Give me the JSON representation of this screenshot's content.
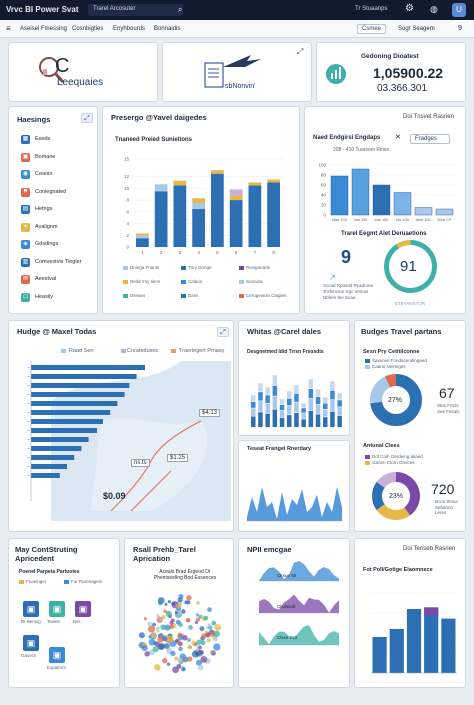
{
  "app": {
    "title": "Vrvc BI Power Svat",
    "tab": "Trarel Arcosuter",
    "user": "Tr Stuaanps"
  },
  "menu": {
    "items": [
      "Aseisel Fmessing",
      "Cosnbigties",
      "Enyhbourds",
      "Bonnaidis"
    ],
    "btn1": "Csmee",
    "btn2": "Sogr  Seagem",
    "help": "9"
  },
  "kpi": {
    "card1_letter": "C",
    "card1_text": "Leequaies",
    "card2_text": "sbNonvin'",
    "card3_title": "Gedoning Dioatest",
    "card3_value": "1,05900.22",
    "card3_sub": "03.366.301"
  },
  "sidebar": {
    "title": "Haesings",
    "items": [
      "Easds",
      "Bomane",
      "Ceaoin",
      "Coniegnated",
      "Hetngs",
      "Avalignm",
      "Gdsdings",
      "Comvestvis Tiegler",
      "Aeestval",
      "Heasily"
    ]
  },
  "mainbar": {
    "title": "Presergo @Yavel daigedes",
    "sub": "Tnaneed Preied Sunietions",
    "legend": [
      "Dniega Fnants",
      "Tnry Dnnge",
      "Reviganarle",
      "Reitd Yriy tiens",
      "Celaon",
      "Sonnina",
      "Dsiears",
      "Daris",
      "Cerogewoin Clagien"
    ]
  },
  "rightbar": {
    "title": "Naed Endgirsi Engdaps",
    "select": "Fradges",
    "top_btn": "Doi Tnsvet Rasrien",
    "range": "208 - 410 Tuarsom Rines",
    "sub2": "Trarel Eegmt Alet Deruaetions",
    "big9": "9",
    "donut_val": "91",
    "s9a": "Sccad Rpasdd Ryadrone",
    "s9b": "Tcsfimcton Sgc Vemas",
    "s9c": "Nbfers the Scaa",
    "foot": "ETBYANSTOR"
  },
  "hbar": {
    "title": "Hudge @ Maxel Todas",
    "legend": [
      "Raad Sen",
      "Cnrateduses",
      "Traerlegert Prnasy"
    ],
    "lbl1": "$4.13",
    "lbl2": "ns.ts",
    "lbl3": "$1.25",
    "lbl4": "$0.09"
  },
  "mid": {
    "title": "Whitas @Carel dales",
    "sub": "Desgnetmed Idid Trrsn Frsosdts",
    "title2": "Teseat Frangel Rnerdary"
  },
  "budget": {
    "title": "Budges Travel partans",
    "sub1": "Sesn Pry Cetitilconne",
    "leg1": "Savnrvel Fondacendingaed",
    "leg2": "Caarni Neeniges",
    "pct1": "27%",
    "val1": "67",
    "val1a": "Stes Frtcts",
    "val1b": "See Fesals",
    "sub2": "Antunal Clees",
    "leg3": "Dof Coih Gerdeing atiaed",
    "leg4": "Garien Ctorn Grelces",
    "pct2": "23%",
    "val2": "720",
    "val2a": "Bcos Stnsa",
    "val2b": "Sehanca Leres"
  },
  "bottom": {
    "b1_title": "May ContStruting Apricedent",
    "b1_sub": "Poenel Parpeta Partuotes",
    "b1_leg": [
      "Fnaeinger",
      "For Rarenagem"
    ],
    "b1_icons": [
      "Br Bennig",
      "Tewee",
      "Bvs",
      "Gaovcs",
      "Expaitors"
    ],
    "b2_title": "Rsall Prehb_Tarel Aprication",
    "b2_sub": "Aceals Brad Ergeod Or Phemseeling Bnd Exsences",
    "b3_title": "NPII emcgae",
    "b3_btn": "Doi Tenseb Rasrien",
    "b3_l1": "Clrsue 65",
    "b3_l2": "Clsasiedt",
    "b3_l3": "Clsse 210",
    "b4_title": "Fot Poll/Gotige Elaomnece"
  },
  "chart_data": [
    {
      "type": "bar",
      "title": "Tnaneed Preied Sunietions",
      "ylim": [
        0,
        15
      ],
      "ticks": [
        0,
        2,
        4,
        6,
        8,
        10,
        12,
        15
      ],
      "categories": [
        "1",
        "2",
        "3",
        "4",
        "5",
        "6",
        "7",
        "8"
      ],
      "series": [
        {
          "values": [
            1.5,
            9.5,
            10.5,
            6.5,
            12.5,
            8,
            10.5,
            11
          ],
          "color": "#2c6fb3"
        },
        {
          "values": [
            0.5,
            1.2,
            0,
            1.0,
            0,
            0,
            0,
            0
          ],
          "color": "#a8c8e8"
        },
        {
          "values": [
            0.3,
            0,
            0.8,
            0.8,
            0.6,
            0.8,
            0.5,
            0.5
          ],
          "color": "#e6b84a"
        },
        {
          "values": [
            0,
            0,
            0,
            0,
            0,
            1.0,
            0,
            0
          ],
          "color": "#c8b0d8"
        }
      ]
    },
    {
      "type": "bar",
      "title": "Naed Endgirsi Engdaps",
      "ylim": [
        0,
        100
      ],
      "ticks": [
        0,
        20,
        40,
        60,
        80,
        100
      ],
      "categories": [
        "Mae 103",
        "3ne 190",
        "Ime 180",
        "Ma 1S0",
        "Ame 10C",
        "Mnb CP"
      ],
      "values": [
        78,
        92,
        60,
        45,
        15,
        12
      ]
    },
    {
      "type": "pie",
      "values": [
        91,
        9
      ]
    },
    {
      "type": "bar",
      "title": "Hudge @ Maxel Todas",
      "values": [
        95,
        88,
        82,
        78,
        72,
        66,
        60,
        55,
        48,
        42,
        36,
        30,
        24
      ]
    },
    {
      "type": "pie",
      "values": [
        73,
        20,
        7
      ]
    },
    {
      "type": "pie",
      "values": [
        40,
        25,
        20,
        15
      ]
    },
    {
      "type": "bar",
      "title": "Fot Poll/Gotige Elaomnece",
      "ylim": [
        0,
        100
      ],
      "ticks": [
        0,
        25,
        50,
        75,
        100
      ],
      "values": [
        45,
        55,
        80,
        82,
        68
      ]
    }
  ]
}
